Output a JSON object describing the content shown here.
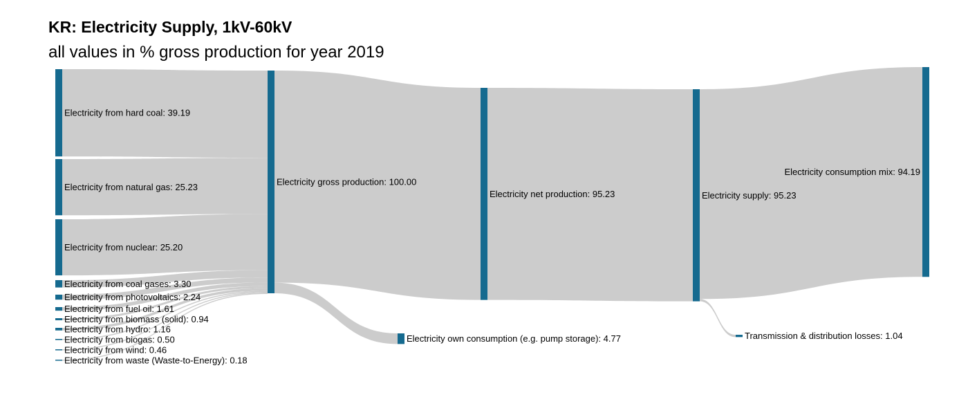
{
  "title": "KR: Electricity Supply, 1kV-60kV",
  "subtitle": "all values in % gross production for year 2019",
  "colors": {
    "node": "#156a8f",
    "link": "#cccccc",
    "text": "#000000"
  },
  "chart_data": {
    "type": "sankey",
    "nodes": [
      {
        "id": "hard_coal",
        "label": "Electricity from hard coal: 39.19",
        "value": 39.19
      },
      {
        "id": "natural_gas",
        "label": "Electricity from natural gas: 25.23",
        "value": 25.23
      },
      {
        "id": "nuclear",
        "label": "Electricity from nuclear: 25.20",
        "value": 25.2
      },
      {
        "id": "coal_gases",
        "label": "Electricity from coal gases: 3.30",
        "value": 3.3
      },
      {
        "id": "photovoltaics",
        "label": "Electricity from photovoltaics: 2.24",
        "value": 2.24
      },
      {
        "id": "fuel_oil",
        "label": "Electricity from fuel oil: 1.61",
        "value": 1.61
      },
      {
        "id": "biomass",
        "label": "Electricity from biomass (solid): 0.94",
        "value": 0.94
      },
      {
        "id": "hydro",
        "label": "Electricity from hydro: 1.16",
        "value": 1.16
      },
      {
        "id": "biogas",
        "label": "Electricity from biogas: 0.50",
        "value": 0.5
      },
      {
        "id": "wind",
        "label": "Electricity from wind: 0.46",
        "value": 0.46
      },
      {
        "id": "waste",
        "label": "Electricity from waste (Waste-to-Energy): 0.18",
        "value": 0.18
      },
      {
        "id": "gross",
        "label": "Electricity gross production: 100.00",
        "value": 100.0
      },
      {
        "id": "own",
        "label": "Electricity own consumption (e.g. pump storage): 4.77",
        "value": 4.77
      },
      {
        "id": "net",
        "label": "Electricity net production: 95.23",
        "value": 95.23
      },
      {
        "id": "supply",
        "label": "Electricity supply: 95.23",
        "value": 95.23
      },
      {
        "id": "losses",
        "label": "Transmission & distribution losses: 1.04",
        "value": 1.04
      },
      {
        "id": "mix",
        "label": "Electricity consumption mix: 94.19",
        "value": 94.19
      }
    ],
    "links": [
      {
        "source": "hard_coal",
        "target": "gross",
        "value": 39.19
      },
      {
        "source": "natural_gas",
        "target": "gross",
        "value": 25.23
      },
      {
        "source": "nuclear",
        "target": "gross",
        "value": 25.2
      },
      {
        "source": "coal_gases",
        "target": "gross",
        "value": 3.3
      },
      {
        "source": "photovoltaics",
        "target": "gross",
        "value": 2.24
      },
      {
        "source": "fuel_oil",
        "target": "gross",
        "value": 1.61
      },
      {
        "source": "biomass",
        "target": "gross",
        "value": 0.94
      },
      {
        "source": "hydro",
        "target": "gross",
        "value": 1.16
      },
      {
        "source": "biogas",
        "target": "gross",
        "value": 0.5
      },
      {
        "source": "wind",
        "target": "gross",
        "value": 0.46
      },
      {
        "source": "waste",
        "target": "gross",
        "value": 0.18
      },
      {
        "source": "gross",
        "target": "net",
        "value": 95.23
      },
      {
        "source": "gross",
        "target": "own",
        "value": 4.77
      },
      {
        "source": "net",
        "target": "supply",
        "value": 95.23
      },
      {
        "source": "supply",
        "target": "mix",
        "value": 94.19
      },
      {
        "source": "supply",
        "target": "losses",
        "value": 1.04
      }
    ]
  }
}
